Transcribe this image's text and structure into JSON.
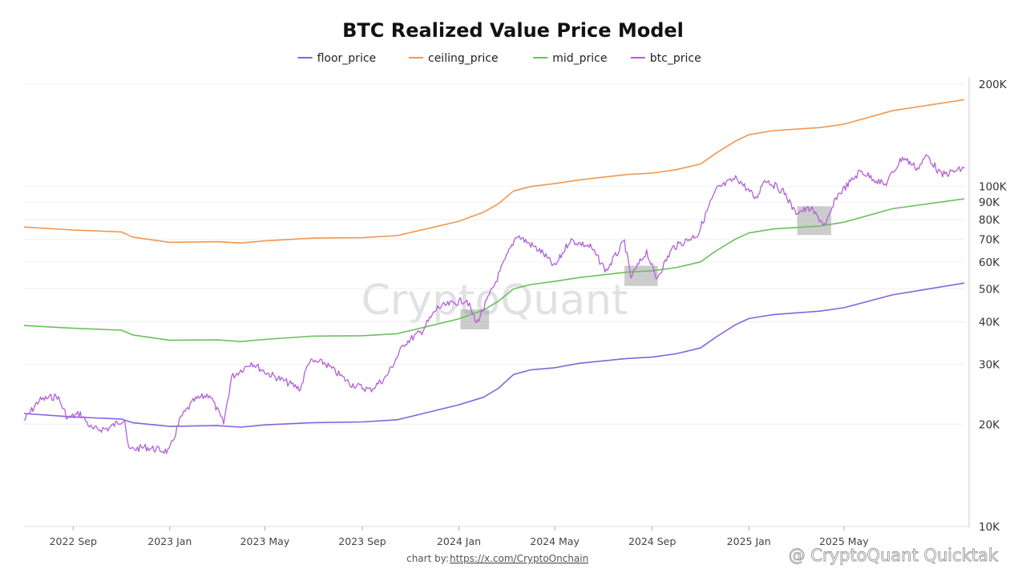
{
  "chart_data": {
    "type": "line",
    "title": "BTC Realized Value Price Model",
    "y_scale": "log",
    "ylim": [
      10000,
      210000
    ],
    "y_ticks": [
      {
        "value": 10000,
        "label": "10K"
      },
      {
        "value": 20000,
        "label": "20K"
      },
      {
        "value": 30000,
        "label": "30K"
      },
      {
        "value": 40000,
        "label": "40K"
      },
      {
        "value": 50000,
        "label": "50K"
      },
      {
        "value": 60000,
        "label": "60K"
      },
      {
        "value": 70000,
        "label": "70K"
      },
      {
        "value": 80000,
        "label": "80K"
      },
      {
        "value": 90000,
        "label": "90K"
      },
      {
        "value": 100000,
        "label": "100K"
      },
      {
        "value": 200000,
        "label": "200K"
      }
    ],
    "xlim": [
      "2022-07-01",
      "2025-09-30"
    ],
    "x_ticks": [
      {
        "value": "2022-09-01",
        "label": "2022 Sep"
      },
      {
        "value": "2023-01-01",
        "label": "2023 Jan"
      },
      {
        "value": "2023-05-01",
        "label": "2023 May"
      },
      {
        "value": "2023-09-01",
        "label": "2023 Sep"
      },
      {
        "value": "2024-01-01",
        "label": "2024 Jan"
      },
      {
        "value": "2024-05-01",
        "label": "2024 May"
      },
      {
        "value": "2024-09-01",
        "label": "2024 Sep"
      },
      {
        "value": "2025-01-01",
        "label": "2025 Jan"
      },
      {
        "value": "2025-05-01",
        "label": "2025 May"
      }
    ],
    "legend_position": "top-center",
    "grid": true,
    "series": [
      {
        "name": "floor_price",
        "color": "#8464df",
        "points": [
          [
            "2022-07-01",
            21500
          ],
          [
            "2022-09-01",
            21000
          ],
          [
            "2022-11-01",
            20700
          ],
          [
            "2022-11-15",
            20200
          ],
          [
            "2023-01-01",
            19700
          ],
          [
            "2023-03-01",
            19800
          ],
          [
            "2023-04-01",
            19600
          ],
          [
            "2023-05-01",
            19900
          ],
          [
            "2023-07-01",
            20200
          ],
          [
            "2023-09-01",
            20300
          ],
          [
            "2023-10-15",
            20600
          ],
          [
            "2023-12-01",
            21900
          ],
          [
            "2024-01-01",
            22800
          ],
          [
            "2024-02-01",
            24000
          ],
          [
            "2024-02-20",
            25500
          ],
          [
            "2024-03-10",
            28000
          ],
          [
            "2024-04-01",
            28900
          ],
          [
            "2024-05-01",
            29300
          ],
          [
            "2024-06-01",
            30200
          ],
          [
            "2024-07-01",
            30700
          ],
          [
            "2024-08-01",
            31200
          ],
          [
            "2024-09-01",
            31500
          ],
          [
            "2024-10-01",
            32200
          ],
          [
            "2024-11-01",
            33500
          ],
          [
            "2024-11-20",
            36000
          ],
          [
            "2024-12-15",
            39200
          ],
          [
            "2025-01-01",
            40900
          ],
          [
            "2025-02-01",
            42000
          ],
          [
            "2025-04-01",
            43000
          ],
          [
            "2025-05-01",
            44000
          ],
          [
            "2025-07-01",
            48000
          ],
          [
            "2025-09-30",
            52000
          ]
        ]
      },
      {
        "name": "ceiling_price",
        "color": "#f0974f",
        "points": [
          [
            "2022-07-01",
            76000
          ],
          [
            "2022-09-01",
            74500
          ],
          [
            "2022-11-01",
            73500
          ],
          [
            "2022-11-15",
            71000
          ],
          [
            "2023-01-01",
            68500
          ],
          [
            "2023-03-01",
            68800
          ],
          [
            "2023-04-01",
            68200
          ],
          [
            "2023-05-01",
            69200
          ],
          [
            "2023-07-01",
            70500
          ],
          [
            "2023-09-01",
            70700
          ],
          [
            "2023-10-15",
            71700
          ],
          [
            "2023-12-01",
            76000
          ],
          [
            "2024-01-01",
            79000
          ],
          [
            "2024-02-01",
            84000
          ],
          [
            "2024-02-20",
            89000
          ],
          [
            "2024-03-10",
            97000
          ],
          [
            "2024-04-01",
            100000
          ],
          [
            "2024-05-01",
            102000
          ],
          [
            "2024-06-01",
            104500
          ],
          [
            "2024-07-01",
            106500
          ],
          [
            "2024-08-01",
            108500
          ],
          [
            "2024-09-01",
            109500
          ],
          [
            "2024-10-01",
            112000
          ],
          [
            "2024-11-01",
            116500
          ],
          [
            "2024-11-20",
            125000
          ],
          [
            "2024-12-15",
            136000
          ],
          [
            "2025-01-01",
            142000
          ],
          [
            "2025-02-01",
            146000
          ],
          [
            "2025-04-01",
            149000
          ],
          [
            "2025-05-01",
            152500
          ],
          [
            "2025-07-01",
            167000
          ],
          [
            "2025-09-30",
            180000
          ]
        ]
      },
      {
        "name": "mid_price",
        "color": "#6cbf5e",
        "points": [
          [
            "2022-07-01",
            39000
          ],
          [
            "2022-09-01",
            38300
          ],
          [
            "2022-11-01",
            37800
          ],
          [
            "2022-11-15",
            36600
          ],
          [
            "2023-01-01",
            35300
          ],
          [
            "2023-03-01",
            35400
          ],
          [
            "2023-04-01",
            35000
          ],
          [
            "2023-05-01",
            35500
          ],
          [
            "2023-07-01",
            36300
          ],
          [
            "2023-09-01",
            36400
          ],
          [
            "2023-10-15",
            36900
          ],
          [
            "2023-12-01",
            39200
          ],
          [
            "2024-01-01",
            40800
          ],
          [
            "2024-02-01",
            43300
          ],
          [
            "2024-02-20",
            46000
          ],
          [
            "2024-03-10",
            50000
          ],
          [
            "2024-04-01",
            51500
          ],
          [
            "2024-05-01",
            52600
          ],
          [
            "2024-06-01",
            54000
          ],
          [
            "2024-07-01",
            55000
          ],
          [
            "2024-08-01",
            56000
          ],
          [
            "2024-09-01",
            56500
          ],
          [
            "2024-10-01",
            57700
          ],
          [
            "2024-11-01",
            60000
          ],
          [
            "2024-11-20",
            64500
          ],
          [
            "2024-12-15",
            70000
          ],
          [
            "2025-01-01",
            73000
          ],
          [
            "2025-02-01",
            75000
          ],
          [
            "2025-04-01",
            76500
          ],
          [
            "2025-05-01",
            78500
          ],
          [
            "2025-07-01",
            86000
          ],
          [
            "2025-09-30",
            92000
          ]
        ]
      },
      {
        "name": "btc_price",
        "color": "#b160d9",
        "points": [
          [
            "2022-07-01",
            20500
          ],
          [
            "2022-07-20",
            23500
          ],
          [
            "2022-08-12",
            24200
          ],
          [
            "2022-08-25",
            20800
          ],
          [
            "2022-09-10",
            21500
          ],
          [
            "2022-09-25",
            19300
          ],
          [
            "2022-10-15",
            19400
          ],
          [
            "2022-11-05",
            20800
          ],
          [
            "2022-11-10",
            16800
          ],
          [
            "2022-12-01",
            17100
          ],
          [
            "2022-12-31",
            16600
          ],
          [
            "2023-01-15",
            20900
          ],
          [
            "2023-02-01",
            23500
          ],
          [
            "2023-02-20",
            24500
          ],
          [
            "2023-03-10",
            20100
          ],
          [
            "2023-03-20",
            27500
          ],
          [
            "2023-04-14",
            30400
          ],
          [
            "2023-05-01",
            28500
          ],
          [
            "2023-06-15",
            25400
          ],
          [
            "2023-06-25",
            30500
          ],
          [
            "2023-07-15",
            30300
          ],
          [
            "2023-08-17",
            26300
          ],
          [
            "2023-09-11",
            25200
          ],
          [
            "2023-10-01",
            27500
          ],
          [
            "2023-10-24",
            34500
          ],
          [
            "2023-11-15",
            37500
          ],
          [
            "2023-12-05",
            44000
          ],
          [
            "2024-01-11",
            46500
          ],
          [
            "2024-01-23",
            39500
          ],
          [
            "2024-02-15",
            51500
          ],
          [
            "2024-03-01",
            62000
          ],
          [
            "2024-03-14",
            72000
          ],
          [
            "2024-04-15",
            64000
          ],
          [
            "2024-05-01",
            58000
          ],
          [
            "2024-05-20",
            69500
          ],
          [
            "2024-06-15",
            66500
          ],
          [
            "2024-07-05",
            56500
          ],
          [
            "2024-07-28",
            69000
          ],
          [
            "2024-08-05",
            54000
          ],
          [
            "2024-08-25",
            64500
          ],
          [
            "2024-09-06",
            53500
          ],
          [
            "2024-09-27",
            66000
          ],
          [
            "2024-10-29",
            72500
          ],
          [
            "2024-11-12",
            88000
          ],
          [
            "2024-11-22",
            98500
          ],
          [
            "2024-12-17",
            106000
          ],
          [
            "2025-01-10",
            92000
          ],
          [
            "2025-01-21",
            105500
          ],
          [
            "2025-02-15",
            96000
          ],
          [
            "2025-02-28",
            84000
          ],
          [
            "2025-03-20",
            86000
          ],
          [
            "2025-04-08",
            76500
          ],
          [
            "2025-04-22",
            93500
          ],
          [
            "2025-05-22",
            111000
          ],
          [
            "2025-06-22",
            101000
          ],
          [
            "2025-07-14",
            122000
          ],
          [
            "2025-08-02",
            113000
          ],
          [
            "2025-08-14",
            123500
          ],
          [
            "2025-09-01",
            108000
          ],
          [
            "2025-09-30",
            113000
          ]
        ]
      }
    ],
    "annotations": [
      {
        "type": "highlight-box",
        "x": [
          "2024-01-03",
          "2024-02-08"
        ],
        "y": [
          38000,
          43500
        ]
      },
      {
        "type": "highlight-box",
        "x": [
          "2024-07-28",
          "2024-09-08"
        ],
        "y": [
          51000,
          58500
        ]
      },
      {
        "type": "highlight-box",
        "x": [
          "2025-03-03",
          "2025-04-15"
        ],
        "y": [
          72000,
          87500
        ]
      }
    ]
  },
  "footer": {
    "credit_prefix": "chart by: ",
    "credit_link": "https://x.com/CryptoOnchain",
    "quicktake_label": "@ CryptoQuant Quicktak"
  },
  "watermark_text": "CryptoQuant"
}
